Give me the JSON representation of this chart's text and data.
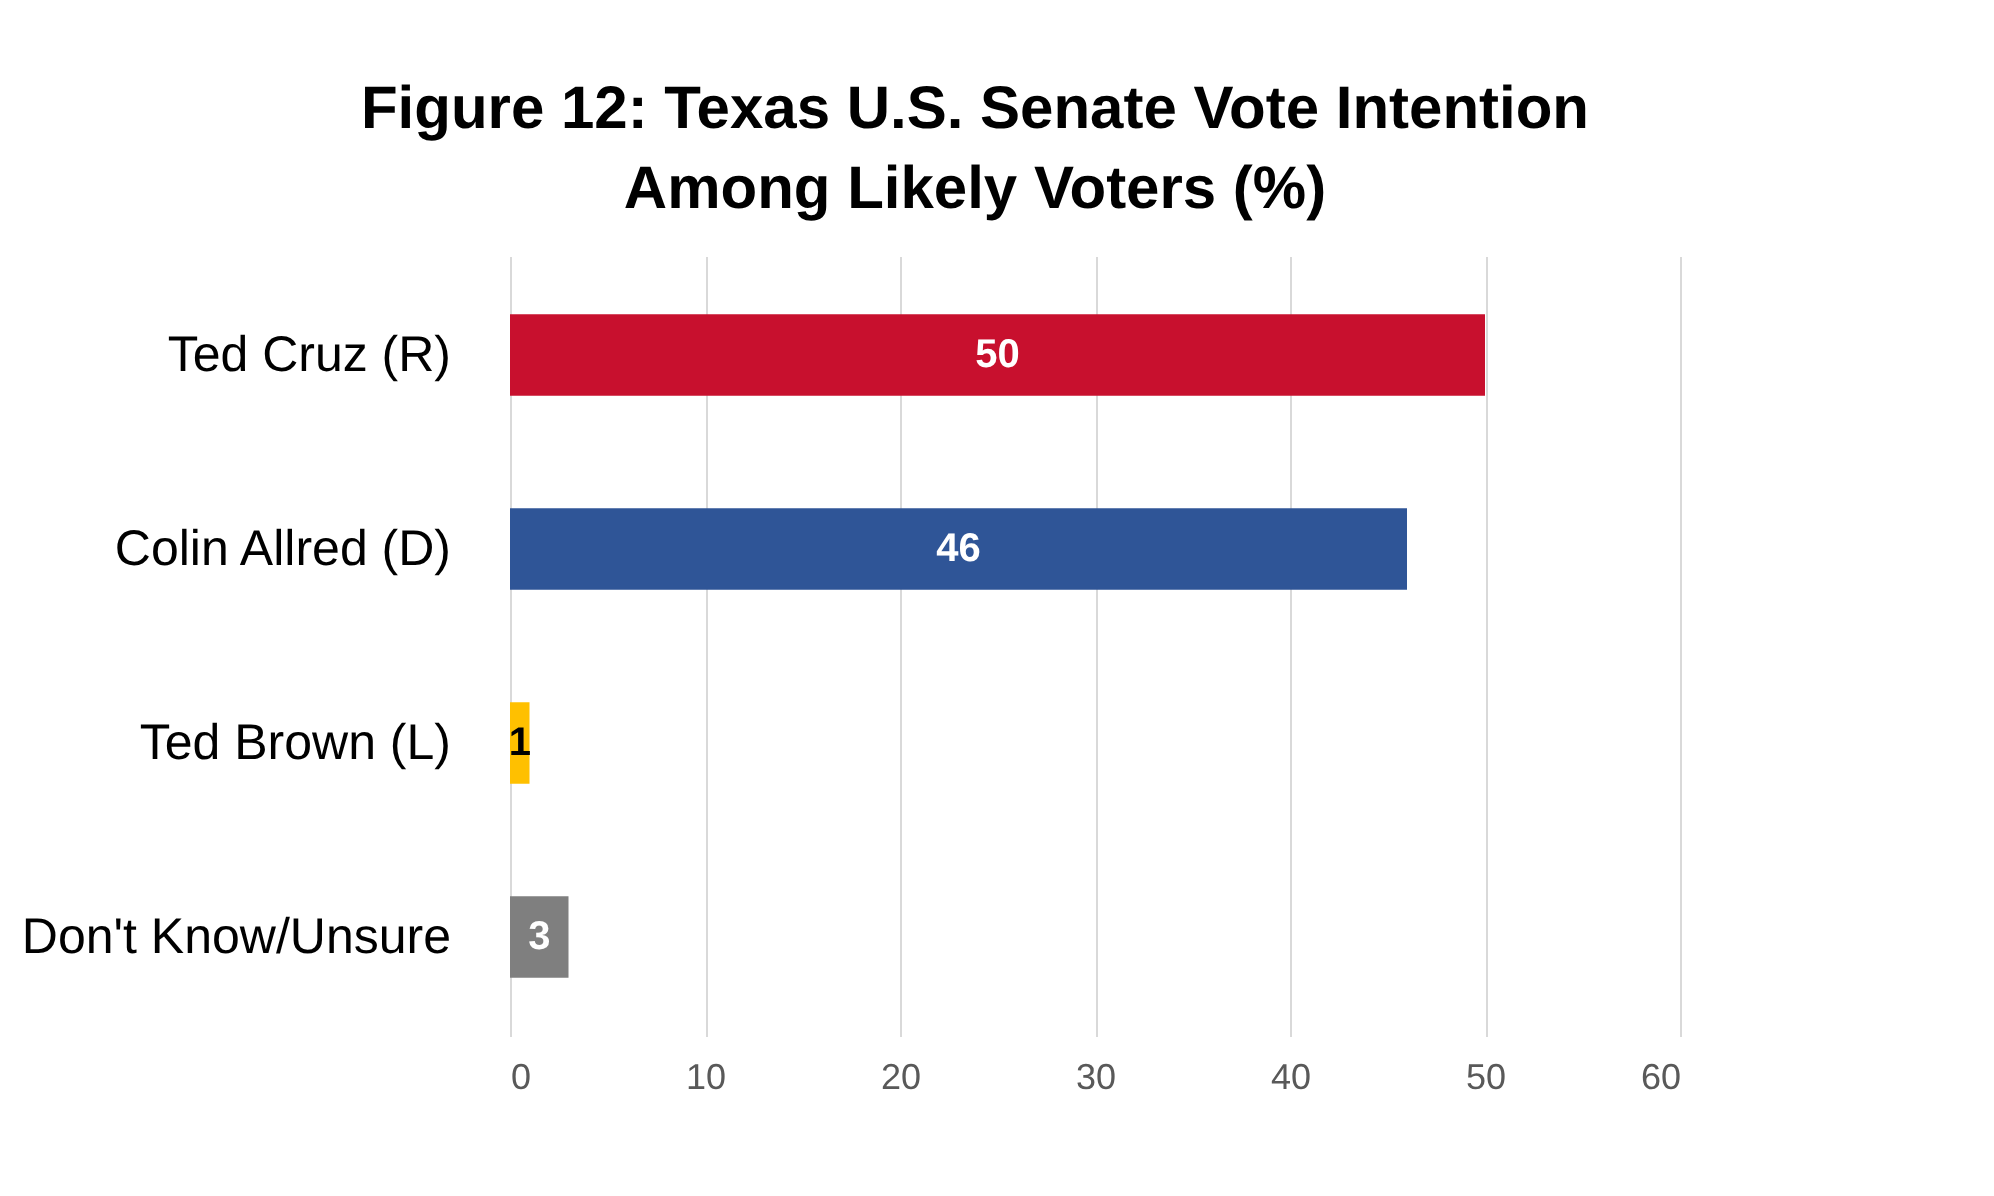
{
  "chart_data": {
    "type": "bar",
    "orientation": "horizontal",
    "title": "Figure 12: Texas U.S. Senate Vote Intention\nAmong Likely Voters (%)",
    "categories": [
      "Ted Cruz (R)",
      "Colin Allred (D)",
      "Ted Brown (L)",
      "Don't Know/Unsure"
    ],
    "values": [
      50,
      46,
      1,
      3
    ],
    "colors": [
      "#c8102e",
      "#2f5597",
      "#ffc000",
      "#7f7f7f"
    ],
    "xlim": [
      0,
      60
    ],
    "xticks": [
      0,
      10,
      20,
      30,
      40,
      50,
      60
    ],
    "grid": "x",
    "data_labels": true
  }
}
